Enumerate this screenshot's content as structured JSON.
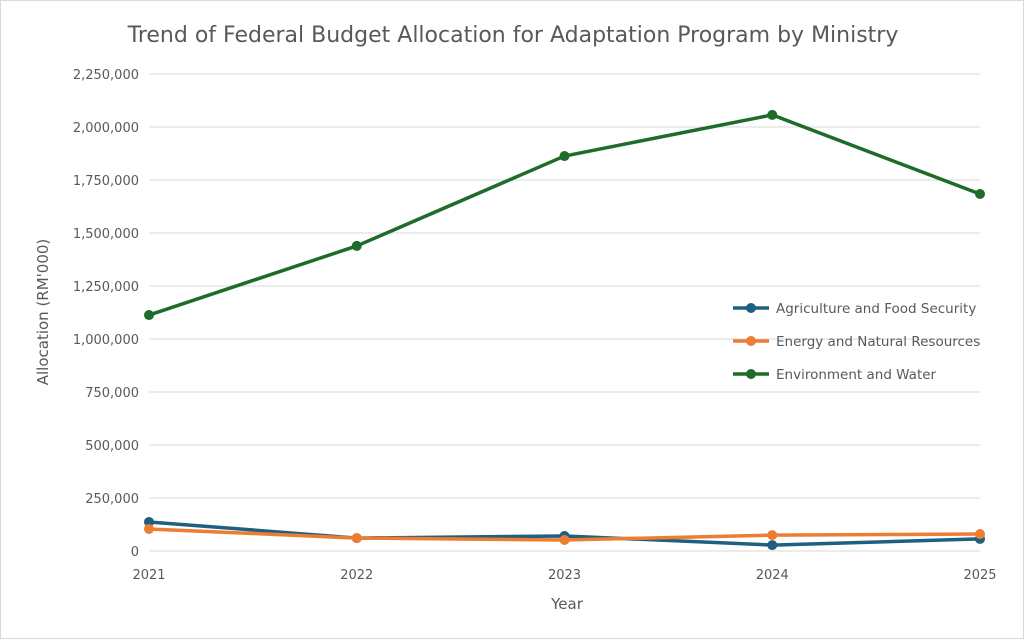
{
  "chart_data": {
    "type": "line",
    "title": "Trend of Federal Budget Allocation for Adaptation Program by Ministry",
    "xlabel": "Year",
    "ylabel": "Allocation (RM'000)",
    "x": [
      "2021",
      "2022",
      "2023",
      "2024",
      "2025"
    ],
    "ylim": [
      0,
      2250000
    ],
    "yticks": [
      0,
      250000,
      500000,
      750000,
      1000000,
      1250000,
      1500000,
      1750000,
      2000000,
      2250000
    ],
    "ytick_labels": [
      "0",
      "250,000",
      "500,000",
      "750,000",
      "1,000,000",
      "1,250,000",
      "1,500,000",
      "1,750,000",
      "2,000,000",
      "2,250,000"
    ],
    "grid": true,
    "legend_position": "right",
    "series": [
      {
        "name": "Agriculture and Food Security",
        "color": "#1f5f7f",
        "values": [
          137000,
          61000,
          71000,
          28000,
          57000
        ]
      },
      {
        "name": "Energy and Natural Resources",
        "color": "#ed7d31",
        "values": [
          104000,
          61000,
          52000,
          75000,
          80000
        ]
      },
      {
        "name": "Environment and Water",
        "color": "#1e6b2a",
        "values": [
          1113000,
          1439000,
          1863000,
          2057000,
          1684000
        ]
      }
    ]
  }
}
